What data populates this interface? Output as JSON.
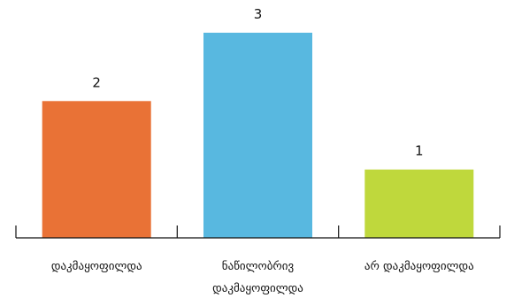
{
  "chart_data": {
    "type": "bar",
    "title": "",
    "xlabel": "",
    "ylabel": "",
    "categories": [
      [
        "დაკმაყოფილდა"
      ],
      [
        "ნაწილობრივ",
        "დაკმაყოფილდა"
      ],
      [
        "არ  დაკმაყოფილდა"
      ]
    ],
    "values": [
      2,
      3,
      1
    ],
    "value_labels": [
      "2",
      "3",
      "1"
    ],
    "colors": [
      "#e97236",
      "#58b8e0",
      "#bfd83c"
    ],
    "ylim": [
      0,
      3
    ],
    "grid": false,
    "legend": "none"
  }
}
